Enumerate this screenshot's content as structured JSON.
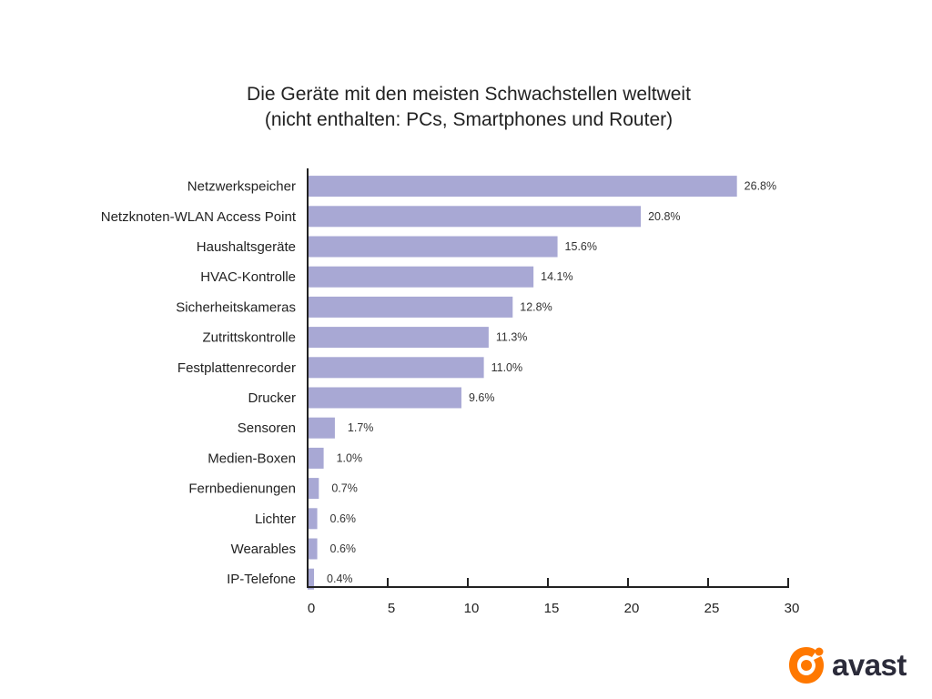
{
  "chart_data": {
    "type": "bar",
    "orientation": "horizontal",
    "title": [
      "Die Geräte mit den meisten Schwachstellen weltweit",
      "(nicht enthalten: PCs, Smartphones und Router)"
    ],
    "categories": [
      "Netzwerkspeicher",
      "Netzknoten-WLAN Access Point",
      "Haushaltsgeräte",
      "HVAC-Kontrolle",
      "Sicherheitskameras",
      "Zutrittskontrolle",
      "Festplattenrecorder",
      "Drucker",
      "Sensoren",
      "Medien-Boxen",
      "Fernbedienungen",
      "Lichter",
      "Wearables",
      "IP-Telefone"
    ],
    "values": [
      26.8,
      20.8,
      15.6,
      14.1,
      12.8,
      11.3,
      11.0,
      9.6,
      1.7,
      1.0,
      0.7,
      0.6,
      0.6,
      0.4
    ],
    "value_labels": [
      "26.8%",
      "20.8%",
      "15.6%",
      "14.1%",
      "12.8%",
      "11.3%",
      "11.0%",
      "9.6%",
      "1.7%",
      "1.0%",
      "0.7%",
      "0.6%",
      "0.6%",
      "0.4%"
    ],
    "xlim": [
      0,
      30
    ],
    "xticks": [
      0,
      5,
      10,
      15,
      20,
      25,
      30
    ],
    "xtick_labels": [
      "0",
      "5",
      "10",
      "15",
      "20",
      "25",
      "30"
    ],
    "xlabel": "",
    "ylabel": "",
    "grid": false,
    "legend": "none",
    "bar_color": "#a8a8d4"
  },
  "brand": {
    "name": "avast",
    "icon": "avast-logo-icon",
    "color": "#ff7800"
  }
}
